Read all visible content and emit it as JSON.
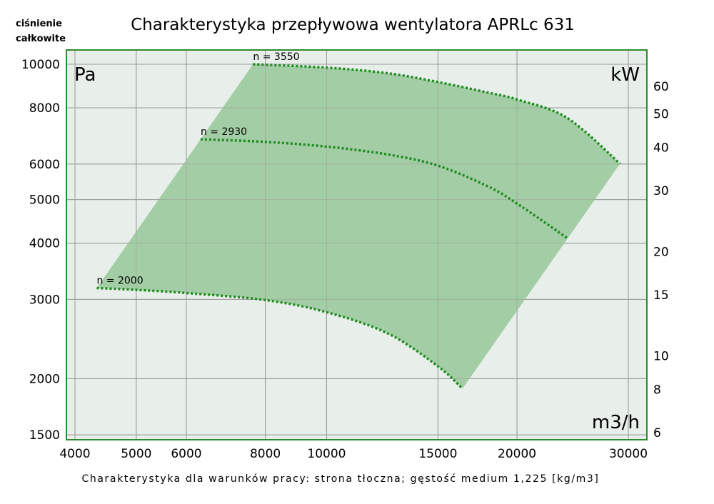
{
  "chart_data": {
    "type": "line",
    "title": "Charakterystyka przepływowa wentylatora APRLc 631",
    "subtitle": "Charakterystyka dla warunków pracy: strona tłoczna; gęstość medium 1,225 [kg/m3]",
    "ylabel": "ciśnienie całkowite",
    "ylabel_line1": "ciśnienie",
    "ylabel_line2": "całkowite",
    "y_unit": "Pa",
    "y2_unit": "kW",
    "x_unit": "m3/h",
    "xscale": "log",
    "yscale": "log",
    "xlim": [
      3850,
      31000
    ],
    "ylim": [
      1450,
      10800
    ],
    "y2lim": [
      5.8,
      78
    ],
    "x_ticks": [
      4000,
      5000,
      6000,
      8000,
      10000,
      15000,
      20000,
      30000
    ],
    "y_ticks": [
      1500,
      2000,
      3000,
      4000,
      5000,
      6000,
      8000,
      10000
    ],
    "y2_ticks": [
      6,
      8,
      10,
      15,
      20,
      30,
      40,
      50,
      60
    ],
    "grid": true,
    "colors": {
      "area": "#a3cda5",
      "curve": "#1e8c1e",
      "border": "#2e8b2e",
      "background": "#e8eeea",
      "grid": "#9a9a9a"
    },
    "series": [
      {
        "name": "n = 2000",
        "x": [
          4330,
          5000,
          6000,
          8000,
          10000,
          12500,
          15000,
          16400
        ],
        "y": [
          3180,
          3150,
          3100,
          2990,
          2810,
          2520,
          2130,
          1900
        ]
      },
      {
        "name": "n = 2930",
        "x": [
          6320,
          8000,
          10000,
          12500,
          15000,
          18000,
          20000,
          24000
        ],
        "y": [
          6810,
          6720,
          6560,
          6300,
          5950,
          5350,
          4900,
          4110
        ]
      },
      {
        "name": "n = 3550",
        "x": [
          7650,
          10000,
          12500,
          15000,
          18000,
          20000,
          24000,
          29100
        ],
        "y": [
          10000,
          9830,
          9550,
          9130,
          8650,
          8350,
          7600,
          6010
        ]
      }
    ]
  }
}
